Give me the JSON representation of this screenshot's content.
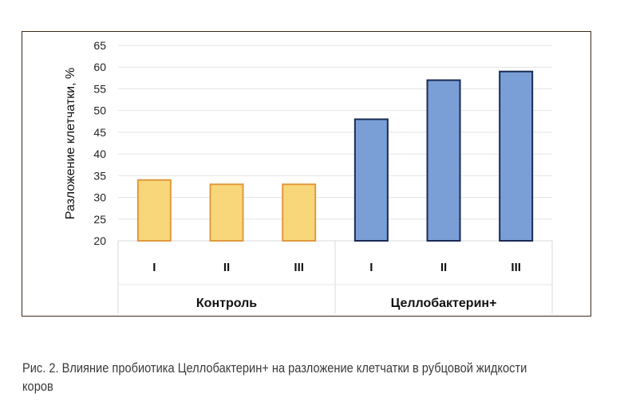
{
  "chart_data": {
    "type": "bar",
    "ylabel": "Разложение  клетчатки, %",
    "ylim": [
      20,
      65
    ],
    "yticks": [
      20,
      25,
      30,
      35,
      40,
      45,
      50,
      55,
      60,
      65
    ],
    "grid": true,
    "groups": [
      {
        "name": "Контроль",
        "color": "#f7d77a",
        "edge": "#e09a3c",
        "categories": [
          "I",
          "II",
          "III"
        ],
        "values": [
          34,
          33,
          33
        ]
      },
      {
        "name": "Целлобактерин+",
        "color": "#7a9fd6",
        "edge": "#1a2a55",
        "categories": [
          "I",
          "II",
          "III"
        ],
        "values": [
          48,
          57,
          59
        ]
      }
    ]
  },
  "caption": "Рис. 2. Влияние пробиотика Целлобактерин+ на разложение клетчатки в  рубцовой жидкости коров"
}
